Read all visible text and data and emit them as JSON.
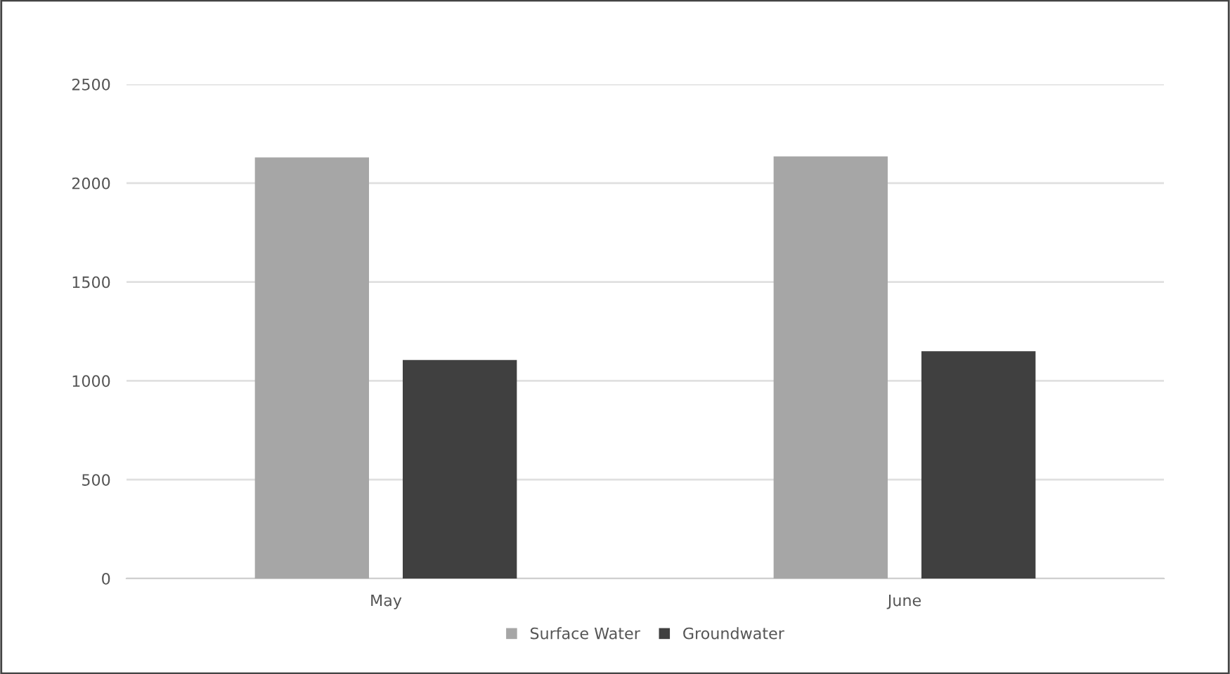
{
  "chart_data": {
    "type": "bar",
    "categories": [
      "May",
      "June"
    ],
    "series": [
      {
        "name": "Surface Water",
        "color": "#a6a6a6",
        "values": [
          2130,
          2135
        ]
      },
      {
        "name": "Groundwater",
        "color": "#404040",
        "values": [
          1105,
          1150
        ]
      }
    ],
    "ylim": [
      0,
      2500
    ],
    "yticks": [
      0,
      500,
      1000,
      1500,
      2000,
      2500
    ],
    "grid": "y",
    "legend": "bottom"
  }
}
